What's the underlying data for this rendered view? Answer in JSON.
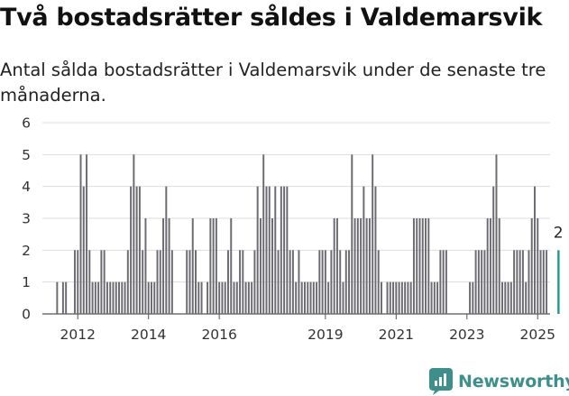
{
  "title": "Två bostadsrätter såldes i Valdemarsvik",
  "subtitle": "Antal sålda bostadsrätter i Valdemarsvik under de senaste tre månaderna.",
  "brand": "Newsworthy",
  "colors": {
    "bar": "#6c6b72",
    "highlight": "#1a9a8a",
    "grid": "#dddddd",
    "brand": "#3d8f8b"
  },
  "chart_data": {
    "type": "bar",
    "title": "Två bostadsrätter såldes i Valdemarsvik",
    "subtitle": "Antal sålda bostadsrätter i Valdemarsvik under de senaste tre månaderna.",
    "xlabel": "",
    "ylabel": "",
    "ylim": [
      0,
      6
    ],
    "yticks": [
      0,
      1,
      2,
      3,
      4,
      5,
      6
    ],
    "xticks": [
      "2012",
      "2014",
      "2016",
      "2019",
      "2021",
      "2023",
      "2025"
    ],
    "xtick_positions": [
      2012.5,
      2014.5,
      2016.5,
      2019.5,
      2021.5,
      2023.5,
      2025.5
    ],
    "grid": "horizontal",
    "x_start": 2011.667,
    "x_step": 0.08333,
    "values": [
      0,
      0,
      0,
      1,
      0,
      1,
      1,
      0,
      0,
      2,
      2,
      5,
      4,
      5,
      2,
      1,
      1,
      1,
      2,
      2,
      1,
      1,
      1,
      1,
      1,
      1,
      1,
      2,
      4,
      5,
      4,
      4,
      2,
      3,
      1,
      1,
      1,
      2,
      2,
      3,
      4,
      3,
      2,
      0,
      0,
      0,
      0,
      2,
      2,
      3,
      2,
      1,
      1,
      0,
      1,
      3,
      3,
      3,
      1,
      1,
      1,
      2,
      3,
      1,
      1,
      2,
      2,
      1,
      1,
      1,
      2,
      4,
      3,
      5,
      4,
      4,
      3,
      4,
      2,
      4,
      4,
      4,
      2,
      2,
      1,
      2,
      1,
      1,
      1,
      1,
      1,
      1,
      2,
      2,
      2,
      1,
      2,
      3,
      3,
      2,
      1,
      2,
      2,
      5,
      3,
      3,
      3,
      4,
      3,
      3,
      5,
      4,
      2,
      1,
      0,
      1,
      1,
      1,
      1,
      1,
      1,
      1,
      1,
      1,
      3,
      3,
      3,
      3,
      3,
      3,
      1,
      1,
      1,
      2,
      2,
      2,
      0,
      0,
      0,
      0,
      0,
      0,
      0,
      1,
      1,
      2,
      2,
      2,
      2,
      3,
      3,
      4,
      5,
      3,
      1,
      1,
      1,
      1,
      2,
      2,
      2,
      2,
      1,
      2,
      3,
      4,
      3,
      2,
      2,
      2,
      0,
      0,
      0,
      2
    ],
    "highlight_index": 173,
    "data_labels": [
      {
        "index": 173,
        "text": "2"
      }
    ]
  }
}
